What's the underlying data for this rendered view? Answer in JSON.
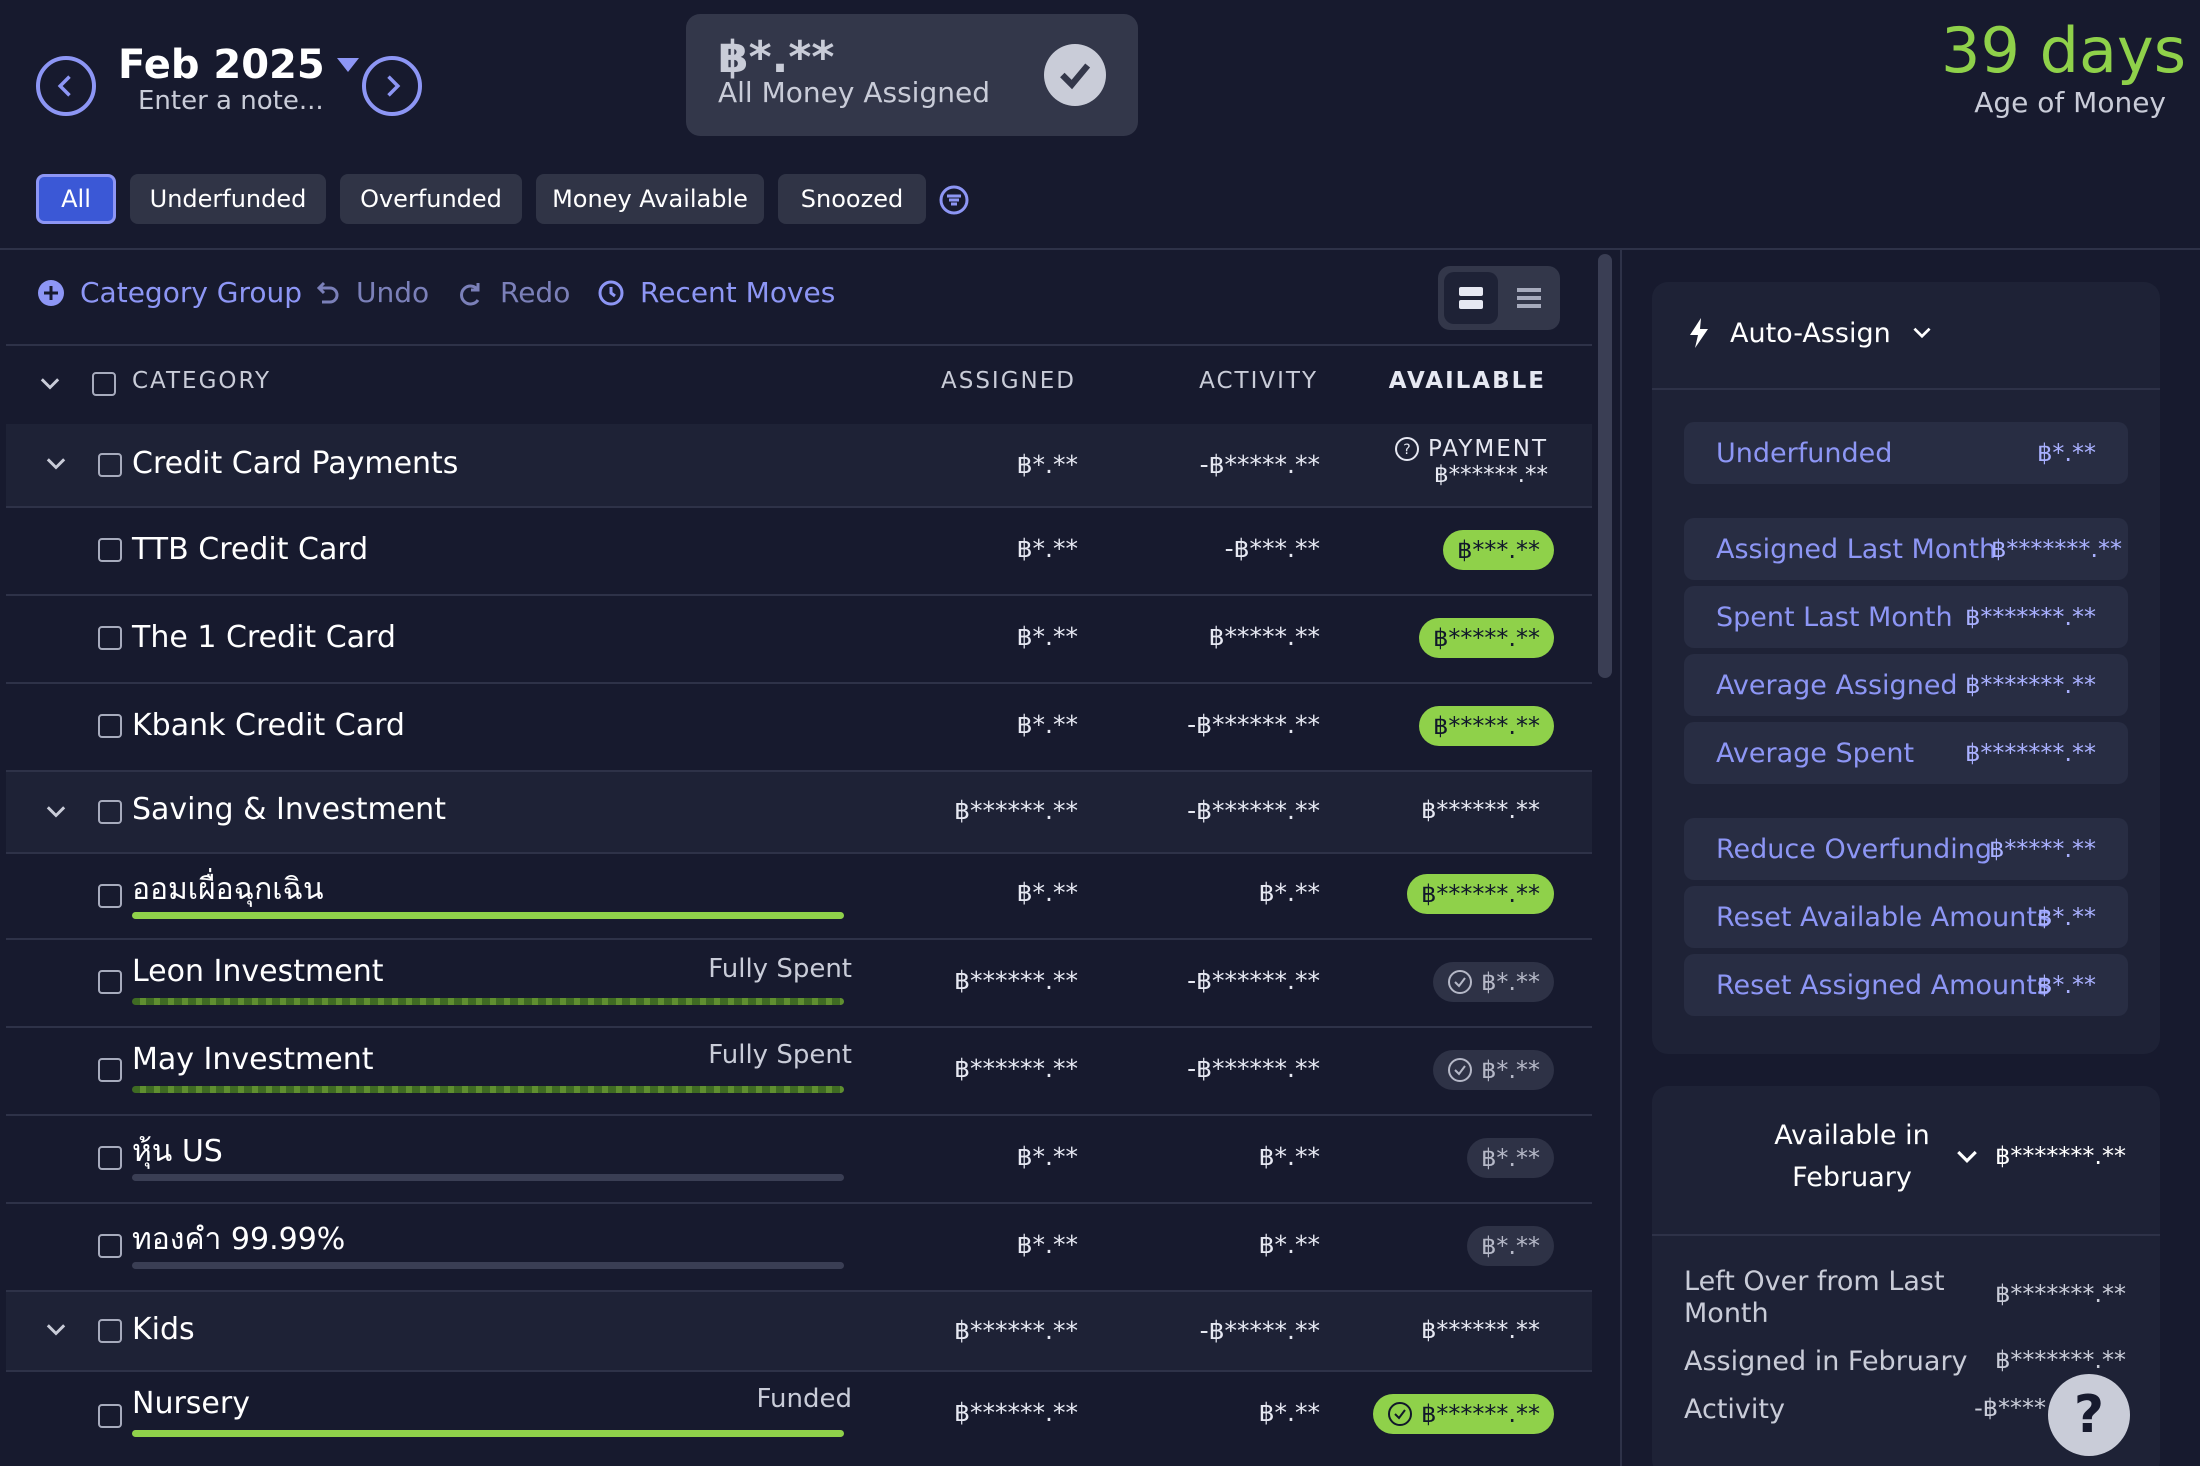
{
  "header": {
    "month": "Feb 2025",
    "note_placeholder": "Enter a note...",
    "assigned_amount": "฿*.**",
    "assigned_label": "All Money Assigned",
    "age_days": "39 days",
    "age_label": "Age of Money"
  },
  "filters": [
    "All",
    "Underfunded",
    "Overfunded",
    "Money Available",
    "Snoozed"
  ],
  "toolbar": {
    "category_group": "Category Group",
    "undo": "Undo",
    "redo": "Redo",
    "recent_moves": "Recent Moves"
  },
  "columns": {
    "category": "CATEGORY",
    "assigned": "ASSIGNED",
    "activity": "ACTIVITY",
    "available": "AVAILABLE"
  },
  "rows": {
    "ccp": {
      "name": "Credit Card Payments",
      "assigned": "฿*.**",
      "activity": "-฿*****.**",
      "payment_label": "PAYMENT",
      "payment_value": "฿******.**"
    },
    "ttb": {
      "name": "TTB Credit Card",
      "assigned": "฿*.**",
      "activity": "-฿***.**",
      "available": "฿***.**"
    },
    "the1": {
      "name": "The 1 Credit Card",
      "assigned": "฿*.**",
      "activity": "฿*****.**",
      "available": "฿*****.**"
    },
    "kbank": {
      "name": "Kbank Credit Card",
      "assigned": "฿*.**",
      "activity": "-฿******.**",
      "available": "฿*****.**"
    },
    "saving": {
      "name": "Saving & Investment",
      "assigned": "฿******.**",
      "activity": "-฿******.**",
      "available": "฿******.**"
    },
    "emergency": {
      "name": "ออมเผื่อฉุกเฉิน",
      "assigned": "฿*.**",
      "activity": "฿*.**",
      "available": "฿******.**"
    },
    "leon": {
      "name": "Leon Investment",
      "status": "Fully Spent",
      "assigned": "฿******.**",
      "activity": "-฿******.**",
      "available": "฿*.**"
    },
    "may": {
      "name": "May Investment",
      "status": "Fully Spent",
      "assigned": "฿******.**",
      "activity": "-฿******.**",
      "available": "฿*.**"
    },
    "us": {
      "name": "หุ้น US",
      "assigned": "฿*.**",
      "activity": "฿*.**",
      "available": "฿*.**"
    },
    "gold": {
      "name": "ทองคำ 99.99%",
      "assigned": "฿*.**",
      "activity": "฿*.**",
      "available": "฿*.**"
    },
    "kids": {
      "name": "Kids",
      "assigned": "฿******.**",
      "activity": "-฿*****.**",
      "available": "฿******.**"
    },
    "nursery": {
      "name": "Nursery",
      "status": "Funded",
      "assigned": "฿******.**",
      "activity": "฿*.**",
      "available": "฿******.**"
    }
  },
  "sidebar": {
    "auto_assign": "Auto-Assign",
    "underfunded": {
      "label": "Underfunded",
      "value": "฿*.**"
    },
    "assigned_last_month": {
      "label": "Assigned Last Month",
      "value": "฿*******.**"
    },
    "spent_last_month": {
      "label": "Spent Last Month",
      "value": "฿*******.**"
    },
    "average_assigned": {
      "label": "Average Assigned",
      "value": "฿*******.**"
    },
    "average_spent": {
      "label": "Average Spent",
      "value": "฿*******.**"
    },
    "reduce_overfunding": {
      "label": "Reduce Overfunding",
      "value": "฿*****.**"
    },
    "reset_available": {
      "label": "Reset Available Amounts",
      "value": "฿*.**"
    },
    "reset_assigned": {
      "label": "Reset Assigned Amounts",
      "value": "฿*.**"
    },
    "available_in_line1": "Available in",
    "available_in_line2": "February",
    "available_in_value": "฿*******.**",
    "left_over_line1": "Left Over from Last",
    "left_over_line2": "Month",
    "left_over_value": "฿*******.**",
    "assigned_in_feb": "Assigned in February",
    "assigned_in_feb_value": "฿*******.**",
    "activity": "Activity",
    "activity_value": "-฿****"
  },
  "help_label": "?",
  "colors": {
    "accent": "#8d96f5",
    "funded": "#8fd14a",
    "background": "#171a2e"
  }
}
